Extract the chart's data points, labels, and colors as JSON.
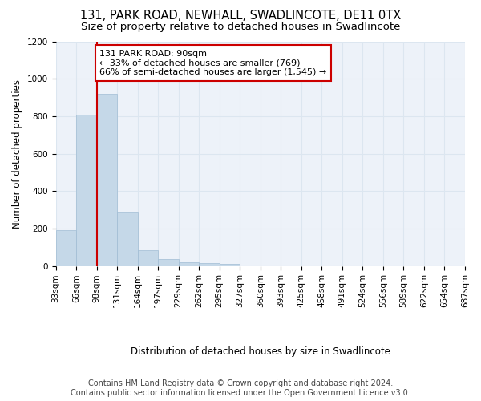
{
  "title": "131, PARK ROAD, NEWHALL, SWADLINCOTE, DE11 0TX",
  "subtitle": "Size of property relative to detached houses in Swadlincote",
  "xlabel": "Distribution of detached houses by size in Swadlincote",
  "ylabel": "Number of detached properties",
  "bar_values": [
    190,
    810,
    920,
    290,
    85,
    35,
    20,
    15,
    10,
    0,
    0,
    0,
    0,
    0,
    0,
    0,
    0,
    0,
    0,
    0
  ],
  "bin_labels": [
    "33sqm",
    "66sqm",
    "98sqm",
    "131sqm",
    "164sqm",
    "197sqm",
    "229sqm",
    "262sqm",
    "295sqm",
    "327sqm",
    "360sqm",
    "393sqm",
    "425sqm",
    "458sqm",
    "491sqm",
    "524sqm",
    "556sqm",
    "589sqm",
    "622sqm",
    "654sqm",
    "687sqm"
  ],
  "bar_color": "#c5d8e8",
  "bar_edge_color": "#a0bcd4",
  "annotation_box_text": "131 PARK ROAD: 90sqm\n← 33% of detached houses are smaller (769)\n66% of semi-detached houses are larger (1,545) →",
  "vline_color": "#cc0000",
  "grid_color": "#dce6f0",
  "background_color": "#edf2f9",
  "ylim": [
    0,
    1200
  ],
  "yticks": [
    0,
    200,
    400,
    600,
    800,
    1000,
    1200
  ],
  "footer_line1": "Contains HM Land Registry data © Crown copyright and database right 2024.",
  "footer_line2": "Contains public sector information licensed under the Open Government Licence v3.0.",
  "title_fontsize": 10.5,
  "subtitle_fontsize": 9.5,
  "xlabel_fontsize": 8.5,
  "ylabel_fontsize": 8.5,
  "annotation_fontsize": 8,
  "footer_fontsize": 7,
  "tick_fontsize": 7.5
}
